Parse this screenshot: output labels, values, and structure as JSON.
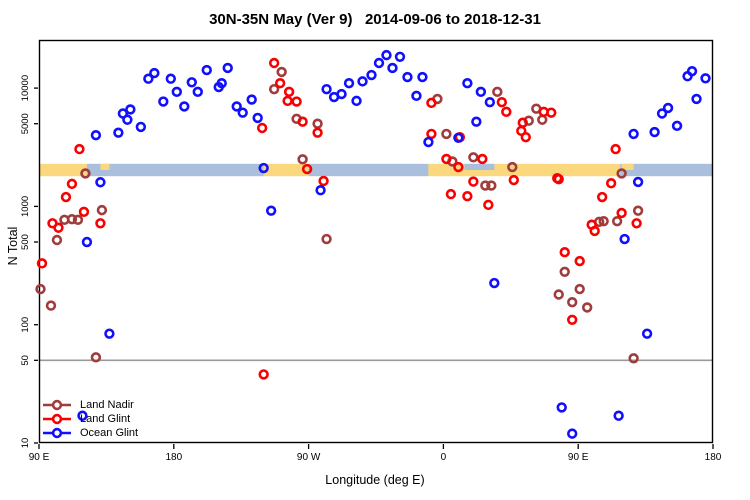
{
  "title": "30N-35N May (Ver 9)   2014-09-06 to 2018-12-31",
  "chart_data": {
    "type": "scatter",
    "xlabel": "Longitude (deg E)",
    "ylabel": "N Total",
    "x_axis": {
      "note": "longitude wraps eastward starting at 90E",
      "range_deg": [
        90,
        540
      ],
      "ticks_deg": [
        90,
        180,
        270,
        360,
        450,
        540
      ],
      "tick_labels": [
        "90 E",
        "180",
        "90 W",
        "0",
        "90 E",
        "180"
      ]
    },
    "y_axis": {
      "scale": "log",
      "range": [
        10,
        25500
      ],
      "ticks": [
        10,
        50,
        100,
        500,
        1000,
        5000,
        10000
      ],
      "tick_labels": [
        "10",
        "50",
        "100",
        "500",
        "1000",
        "5000",
        "10000"
      ]
    },
    "reference_line": {
      "value": 50,
      "color": "#9a9a9a"
    },
    "band": {
      "n_range": [
        1800,
        2290
      ],
      "land_color": "#FBD77D",
      "ocean_color": "#A9BFDB",
      "segments": [
        {
          "from_deg": 90,
          "to_deg": 122,
          "type": "land"
        },
        {
          "from_deg": 122,
          "to_deg": 240,
          "type": "ocean"
        },
        {
          "from_deg": 240,
          "to_deg": 270,
          "type": "land"
        },
        {
          "from_deg": 270,
          "to_deg": 350,
          "type": "ocean"
        },
        {
          "from_deg": 350,
          "to_deg": 478,
          "type": "land"
        },
        {
          "from_deg": 478,
          "to_deg": 540,
          "type": "ocean"
        }
      ],
      "overlay_patches": [
        {
          "from_deg": 374,
          "to_deg": 394,
          "half": "top",
          "type": "ocean"
        },
        {
          "from_deg": 479,
          "to_deg": 487,
          "half": "top",
          "type": "land"
        },
        {
          "from_deg": 131,
          "to_deg": 137,
          "half": "top",
          "type": "land"
        }
      ]
    },
    "series": [
      {
        "name": "Land Nadir",
        "color": "#A03C3C",
        "points": [
          [
            121,
            1900
          ],
          [
            132,
            930
          ],
          [
            107,
            770
          ],
          [
            112,
            780
          ],
          [
            116,
            770
          ],
          [
            102,
            520
          ],
          [
            91,
            200
          ],
          [
            98,
            145
          ],
          [
            128,
            53
          ],
          [
            252,
            13700
          ],
          [
            247,
            9800
          ],
          [
            262,
            5500
          ],
          [
            276,
            5000
          ],
          [
            266,
            2500
          ],
          [
            282,
            530
          ],
          [
            356,
            8100
          ],
          [
            362,
            4100
          ],
          [
            366,
            2400
          ],
          [
            380,
            2600
          ],
          [
            388,
            1500
          ],
          [
            396,
            9300
          ],
          [
            422,
            6700
          ],
          [
            417,
            5300
          ],
          [
            426,
            5400
          ],
          [
            406,
            2150
          ],
          [
            392,
            1500
          ],
          [
            479,
            1900
          ],
          [
            464,
            740
          ],
          [
            467,
            750
          ],
          [
            476,
            750
          ],
          [
            490,
            920
          ],
          [
            441,
            280
          ],
          [
            437,
            180
          ],
          [
            451,
            200
          ],
          [
            446,
            155
          ],
          [
            456,
            140
          ],
          [
            487,
            52
          ]
        ]
      },
      {
        "name": "Land Glint",
        "color": "#FA0000",
        "points": [
          [
            117,
            3050
          ],
          [
            112,
            1550
          ],
          [
            108,
            1200
          ],
          [
            120,
            900
          ],
          [
            131,
            720
          ],
          [
            99,
            720
          ],
          [
            103,
            660
          ],
          [
            92,
            330
          ],
          [
            247,
            16300
          ],
          [
            251,
            11000
          ],
          [
            257,
            9300
          ],
          [
            256,
            7800
          ],
          [
            262,
            7700
          ],
          [
            266,
            5200
          ],
          [
            276,
            4200
          ],
          [
            239,
            4600
          ],
          [
            269,
            2070
          ],
          [
            280,
            1640
          ],
          [
            352,
            7500
          ],
          [
            352,
            4100
          ],
          [
            371,
            3850
          ],
          [
            362,
            2520
          ],
          [
            370,
            2150
          ],
          [
            386,
            2520
          ],
          [
            380,
            1620
          ],
          [
            365,
            1270
          ],
          [
            376,
            1220
          ],
          [
            390,
            1030
          ],
          [
            399,
            7600
          ],
          [
            402,
            6300
          ],
          [
            427,
            6300
          ],
          [
            432,
            6200
          ],
          [
            413,
            5100
          ],
          [
            412,
            4350
          ],
          [
            415,
            3850
          ],
          [
            407,
            1670
          ],
          [
            436,
            1730
          ],
          [
            437,
            1700
          ],
          [
            475,
            3050
          ],
          [
            472,
            1570
          ],
          [
            466,
            1200
          ],
          [
            459,
            700
          ],
          [
            461,
            620
          ],
          [
            479,
            880
          ],
          [
            489,
            720
          ],
          [
            441,
            410
          ],
          [
            451,
            345
          ],
          [
            446,
            110
          ],
          [
            240,
            38
          ]
        ]
      },
      {
        "name": "Ocean Glint",
        "color": "#1010FF",
        "points": [
          [
            163,
            12000
          ],
          [
            167,
            13400
          ],
          [
            178,
            12000
          ],
          [
            192,
            11200
          ],
          [
            202,
            14200
          ],
          [
            216,
            14800
          ],
          [
            210,
            10200
          ],
          [
            212,
            11000
          ],
          [
            182,
            9300
          ],
          [
            196,
            9300
          ],
          [
            173,
            7700
          ],
          [
            187,
            7000
          ],
          [
            222,
            7000
          ],
          [
            232,
            8000
          ],
          [
            226,
            6200
          ],
          [
            236,
            5600
          ],
          [
            146,
            6100
          ],
          [
            151,
            6600
          ],
          [
            149,
            5400
          ],
          [
            158,
            4700
          ],
          [
            143,
            4200
          ],
          [
            128,
            4000
          ],
          [
            131,
            1600
          ],
          [
            122,
            500
          ],
          [
            137,
            84
          ],
          [
            119,
            17
          ],
          [
            317,
            16300
          ],
          [
            322,
            19000
          ],
          [
            331,
            18400
          ],
          [
            326,
            14800
          ],
          [
            312,
            12900
          ],
          [
            306,
            11400
          ],
          [
            297,
            11000
          ],
          [
            282,
            9800
          ],
          [
            287,
            8400
          ],
          [
            292,
            8900
          ],
          [
            302,
            7800
          ],
          [
            336,
            12400
          ],
          [
            346,
            12400
          ],
          [
            342,
            8600
          ],
          [
            376,
            11000
          ],
          [
            385,
            9300
          ],
          [
            391,
            7600
          ],
          [
            382,
            5200
          ],
          [
            350,
            3500
          ],
          [
            370,
            3800
          ],
          [
            278,
            1370
          ],
          [
            245,
            920
          ],
          [
            240,
            2110
          ],
          [
            394,
            225
          ],
          [
            496,
            84
          ],
          [
            439,
            20
          ],
          [
            477,
            17
          ],
          [
            446,
            12
          ],
          [
            481,
            530
          ],
          [
            487,
            4100
          ],
          [
            501,
            4250
          ],
          [
            506,
            6100
          ],
          [
            510,
            6800
          ],
          [
            516,
            4800
          ],
          [
            523,
            12600
          ],
          [
            526,
            13900
          ],
          [
            535,
            12100
          ],
          [
            529,
            8100
          ],
          [
            490,
            1610
          ]
        ]
      }
    ],
    "legend": {
      "position": "bottom-left"
    }
  },
  "layout_colors": {
    "axis": "#000000",
    "background": "#ffffff"
  }
}
